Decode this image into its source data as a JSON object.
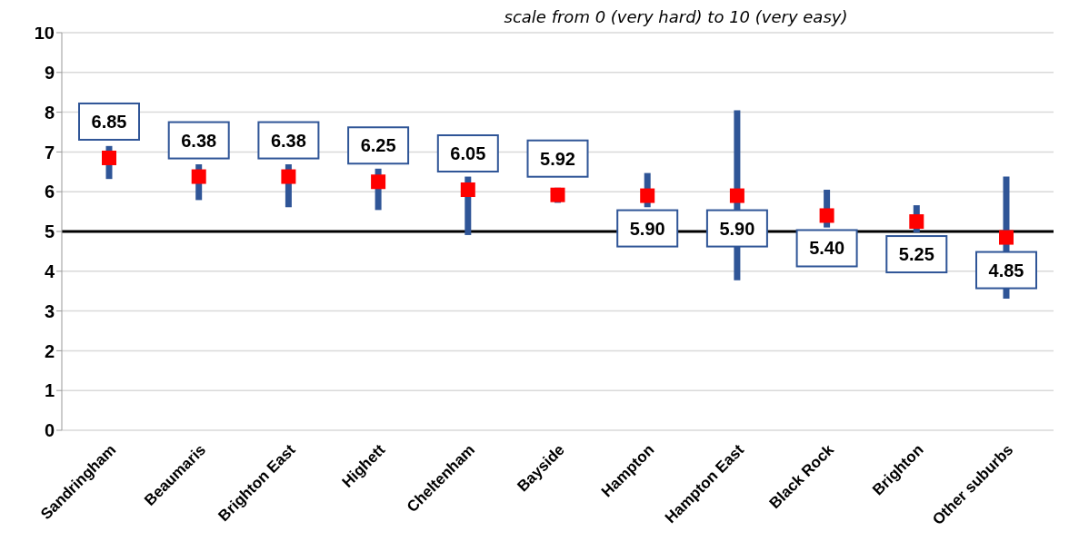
{
  "chart_data": {
    "type": "scatter",
    "subtitle": "scale from 0 (very hard) to 10 (very easy)",
    "categories": [
      "Sandringham",
      "Beaumaris",
      "Brighton East",
      "Highett",
      "Cheltenham",
      "Bayside",
      "Hampton",
      "Hampton East",
      "Black Rock",
      "Brighton",
      "Other suburbs"
    ],
    "series": [
      {
        "color": "#ff0000",
        "values": [
          6.85,
          6.38,
          6.38,
          6.25,
          6.05,
          5.92,
          5.9,
          5.9,
          5.4,
          5.25,
          4.85
        ],
        "errors": [
          [
            6.32,
            7.15
          ],
          [
            5.79,
            6.69
          ],
          [
            5.61,
            6.69
          ],
          [
            5.54,
            6.58
          ],
          [
            4.91,
            6.38
          ],
          [
            5.72,
            6.1
          ],
          [
            5.61,
            6.47
          ],
          [
            3.77,
            8.05
          ],
          [
            5.1,
            6.05
          ],
          [
            4.97,
            5.66
          ],
          [
            3.31,
            6.38
          ]
        ],
        "value_labels": [
          "6.85",
          "6.38",
          "6.38",
          "6.25",
          "6.05",
          "5.92",
          "5.90",
          "5.90",
          "5.40",
          "5.25",
          "4.85"
        ]
      }
    ],
    "ylim": [
      0,
      10
    ],
    "yticks": [
      0,
      1,
      2,
      3,
      4,
      5,
      6,
      7,
      8,
      9,
      10
    ],
    "grid": "y",
    "marker": "square",
    "ref_lines": [
      {
        "axis": "y",
        "value": 5,
        "color": "#000000"
      }
    ]
  }
}
